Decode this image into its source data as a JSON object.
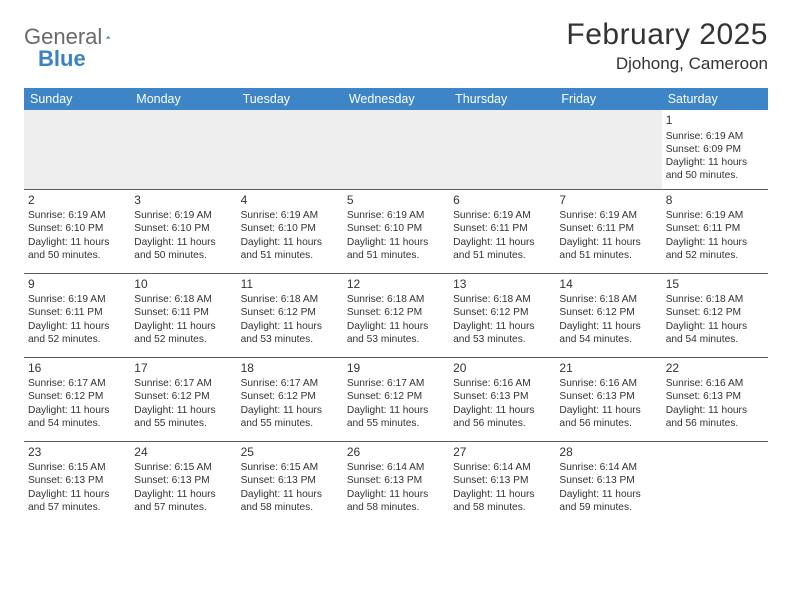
{
  "logo": {
    "word1": "General",
    "word2": "Blue"
  },
  "title": "February 2025",
  "location": "Djohong, Cameroon",
  "colors": {
    "header_bg": "#3d85c6",
    "header_text": "#ffffff",
    "border": "#5a5a5a",
    "empty_bg": "#eeeeee",
    "logo_gray": "#6a6a6a",
    "logo_blue": "#3b82c4"
  },
  "weekdays": [
    "Sunday",
    "Monday",
    "Tuesday",
    "Wednesday",
    "Thursday",
    "Friday",
    "Saturday"
  ],
  "weeks": [
    [
      null,
      null,
      null,
      null,
      null,
      null,
      {
        "n": "1",
        "sunrise": "Sunrise: 6:19 AM",
        "sunset": "Sunset: 6:09 PM",
        "daylight": "Daylight: 11 hours and 50 minutes."
      }
    ],
    [
      {
        "n": "2",
        "sunrise": "Sunrise: 6:19 AM",
        "sunset": "Sunset: 6:10 PM",
        "daylight": "Daylight: 11 hours and 50 minutes."
      },
      {
        "n": "3",
        "sunrise": "Sunrise: 6:19 AM",
        "sunset": "Sunset: 6:10 PM",
        "daylight": "Daylight: 11 hours and 50 minutes."
      },
      {
        "n": "4",
        "sunrise": "Sunrise: 6:19 AM",
        "sunset": "Sunset: 6:10 PM",
        "daylight": "Daylight: 11 hours and 51 minutes."
      },
      {
        "n": "5",
        "sunrise": "Sunrise: 6:19 AM",
        "sunset": "Sunset: 6:10 PM",
        "daylight": "Daylight: 11 hours and 51 minutes."
      },
      {
        "n": "6",
        "sunrise": "Sunrise: 6:19 AM",
        "sunset": "Sunset: 6:11 PM",
        "daylight": "Daylight: 11 hours and 51 minutes."
      },
      {
        "n": "7",
        "sunrise": "Sunrise: 6:19 AM",
        "sunset": "Sunset: 6:11 PM",
        "daylight": "Daylight: 11 hours and 51 minutes."
      },
      {
        "n": "8",
        "sunrise": "Sunrise: 6:19 AM",
        "sunset": "Sunset: 6:11 PM",
        "daylight": "Daylight: 11 hours and 52 minutes."
      }
    ],
    [
      {
        "n": "9",
        "sunrise": "Sunrise: 6:19 AM",
        "sunset": "Sunset: 6:11 PM",
        "daylight": "Daylight: 11 hours and 52 minutes."
      },
      {
        "n": "10",
        "sunrise": "Sunrise: 6:18 AM",
        "sunset": "Sunset: 6:11 PM",
        "daylight": "Daylight: 11 hours and 52 minutes."
      },
      {
        "n": "11",
        "sunrise": "Sunrise: 6:18 AM",
        "sunset": "Sunset: 6:12 PM",
        "daylight": "Daylight: 11 hours and 53 minutes."
      },
      {
        "n": "12",
        "sunrise": "Sunrise: 6:18 AM",
        "sunset": "Sunset: 6:12 PM",
        "daylight": "Daylight: 11 hours and 53 minutes."
      },
      {
        "n": "13",
        "sunrise": "Sunrise: 6:18 AM",
        "sunset": "Sunset: 6:12 PM",
        "daylight": "Daylight: 11 hours and 53 minutes."
      },
      {
        "n": "14",
        "sunrise": "Sunrise: 6:18 AM",
        "sunset": "Sunset: 6:12 PM",
        "daylight": "Daylight: 11 hours and 54 minutes."
      },
      {
        "n": "15",
        "sunrise": "Sunrise: 6:18 AM",
        "sunset": "Sunset: 6:12 PM",
        "daylight": "Daylight: 11 hours and 54 minutes."
      }
    ],
    [
      {
        "n": "16",
        "sunrise": "Sunrise: 6:17 AM",
        "sunset": "Sunset: 6:12 PM",
        "daylight": "Daylight: 11 hours and 54 minutes."
      },
      {
        "n": "17",
        "sunrise": "Sunrise: 6:17 AM",
        "sunset": "Sunset: 6:12 PM",
        "daylight": "Daylight: 11 hours and 55 minutes."
      },
      {
        "n": "18",
        "sunrise": "Sunrise: 6:17 AM",
        "sunset": "Sunset: 6:12 PM",
        "daylight": "Daylight: 11 hours and 55 minutes."
      },
      {
        "n": "19",
        "sunrise": "Sunrise: 6:17 AM",
        "sunset": "Sunset: 6:12 PM",
        "daylight": "Daylight: 11 hours and 55 minutes."
      },
      {
        "n": "20",
        "sunrise": "Sunrise: 6:16 AM",
        "sunset": "Sunset: 6:13 PM",
        "daylight": "Daylight: 11 hours and 56 minutes."
      },
      {
        "n": "21",
        "sunrise": "Sunrise: 6:16 AM",
        "sunset": "Sunset: 6:13 PM",
        "daylight": "Daylight: 11 hours and 56 minutes."
      },
      {
        "n": "22",
        "sunrise": "Sunrise: 6:16 AM",
        "sunset": "Sunset: 6:13 PM",
        "daylight": "Daylight: 11 hours and 56 minutes."
      }
    ],
    [
      {
        "n": "23",
        "sunrise": "Sunrise: 6:15 AM",
        "sunset": "Sunset: 6:13 PM",
        "daylight": "Daylight: 11 hours and 57 minutes."
      },
      {
        "n": "24",
        "sunrise": "Sunrise: 6:15 AM",
        "sunset": "Sunset: 6:13 PM",
        "daylight": "Daylight: 11 hours and 57 minutes."
      },
      {
        "n": "25",
        "sunrise": "Sunrise: 6:15 AM",
        "sunset": "Sunset: 6:13 PM",
        "daylight": "Daylight: 11 hours and 58 minutes."
      },
      {
        "n": "26",
        "sunrise": "Sunrise: 6:14 AM",
        "sunset": "Sunset: 6:13 PM",
        "daylight": "Daylight: 11 hours and 58 minutes."
      },
      {
        "n": "27",
        "sunrise": "Sunrise: 6:14 AM",
        "sunset": "Sunset: 6:13 PM",
        "daylight": "Daylight: 11 hours and 58 minutes."
      },
      {
        "n": "28",
        "sunrise": "Sunrise: 6:14 AM",
        "sunset": "Sunset: 6:13 PM",
        "daylight": "Daylight: 11 hours and 59 minutes."
      },
      null
    ]
  ]
}
